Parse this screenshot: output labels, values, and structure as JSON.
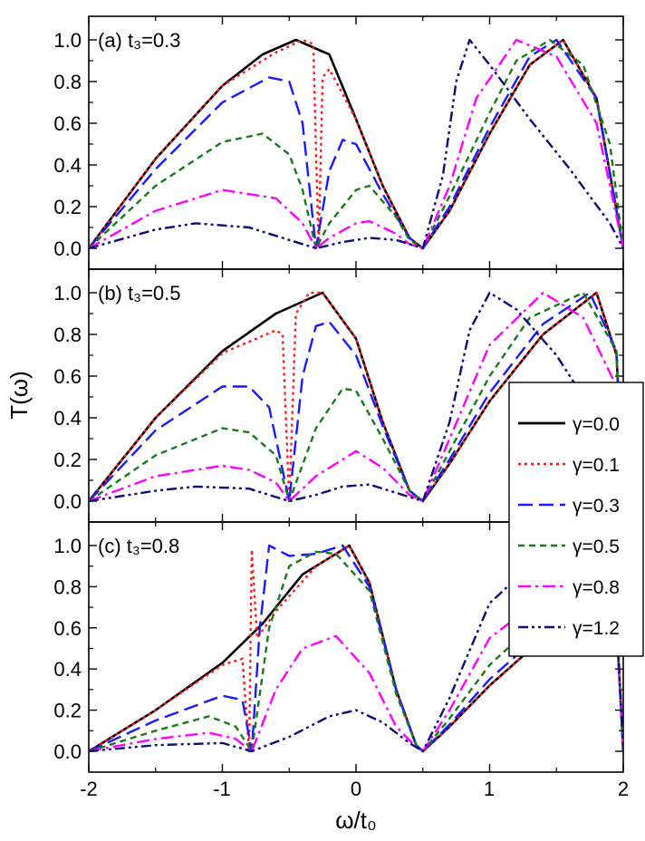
{
  "chart_data": {
    "type": "line",
    "xlabel": "ω/t₀",
    "ylabel": "T(ω)",
    "xlim": [
      -2,
      2
    ],
    "ylim": [
      -0.05,
      1.1
    ],
    "x_ticks": [
      "-2",
      "-1",
      "0",
      "1",
      "2"
    ],
    "y_ticks": [
      "0.0",
      "0.2",
      "0.4",
      "0.6",
      "0.8",
      "1.0"
    ],
    "legend_position": "right, overlapping panels b and c",
    "series_styles": [
      {
        "name": "γ=0.0",
        "color": "#000000",
        "dash": "solid"
      },
      {
        "name": "γ=0.1",
        "color": "#ff1a1a",
        "dash": "dotted"
      },
      {
        "name": "γ=0.3",
        "color": "#1a1aff",
        "dash": "long-dash"
      },
      {
        "name": "γ=0.5",
        "color": "#1a7a1a",
        "dash": "short-dash"
      },
      {
        "name": "γ=0.8",
        "color": "#ff00ff",
        "dash": "dash-dot"
      },
      {
        "name": "γ=1.2",
        "color": "#0d0d7a",
        "dash": "dash-dot-dot"
      }
    ],
    "panels": [
      {
        "label": "(a) t₃=0.3",
        "series": [
          {
            "name": "γ=0.0",
            "x": [
              -2,
              -1.5,
              -1,
              -0.7,
              -0.45,
              -0.2,
              0,
              0.2,
              0.4,
              0.5,
              0.7,
              1.0,
              1.3,
              1.55,
              1.8,
              2
            ],
            "y": [
              0,
              0.43,
              0.78,
              0.93,
              1.0,
              0.93,
              0.62,
              0.3,
              0.05,
              0,
              0.18,
              0.55,
              0.88,
              1.0,
              0.72,
              0
            ]
          },
          {
            "name": "γ=0.1",
            "x": [
              -2,
              -1.5,
              -1,
              -0.6,
              -0.4,
              -0.32,
              -0.28,
              -0.25,
              -0.2,
              0,
              0.2,
              0.4,
              0.5,
              0.7,
              1.0,
              1.3,
              1.55,
              1.8,
              2
            ],
            "y": [
              0,
              0.43,
              0.78,
              0.94,
              1.0,
              0.98,
              0.0,
              0.82,
              0.86,
              0.62,
              0.3,
              0.05,
              0,
              0.18,
              0.55,
              0.88,
              1.0,
              0.72,
              0
            ]
          },
          {
            "name": "γ=0.3",
            "x": [
              -2,
              -1.5,
              -1,
              -0.65,
              -0.5,
              -0.4,
              -0.3,
              -0.2,
              -0.1,
              0,
              0.2,
              0.4,
              0.5,
              0.7,
              1.0,
              1.3,
              1.5,
              1.8,
              2
            ],
            "y": [
              0,
              0.38,
              0.7,
              0.82,
              0.8,
              0.6,
              0.0,
              0.37,
              0.52,
              0.5,
              0.26,
              0.05,
              0,
              0.2,
              0.58,
              0.92,
              1.0,
              0.72,
              0
            ]
          },
          {
            "name": "γ=0.5",
            "x": [
              -2,
              -1.5,
              -1,
              -0.7,
              -0.5,
              -0.4,
              -0.3,
              -0.2,
              0,
              0.1,
              0.3,
              0.4,
              0.5,
              0.7,
              1.0,
              1.2,
              1.45,
              1.7,
              1.9,
              2
            ],
            "y": [
              0,
              0.3,
              0.51,
              0.55,
              0.45,
              0.28,
              0.0,
              0.12,
              0.28,
              0.3,
              0.15,
              0.04,
              0,
              0.25,
              0.65,
              0.9,
              1.0,
              0.88,
              0.5,
              0
            ]
          },
          {
            "name": "γ=0.8",
            "x": [
              -2,
              -1.5,
              -1,
              -0.6,
              -0.4,
              -0.3,
              -0.2,
              0,
              0.1,
              0.3,
              0.4,
              0.5,
              0.7,
              0.9,
              1.2,
              1.5,
              1.8,
              2
            ],
            "y": [
              0,
              0.18,
              0.28,
              0.24,
              0.12,
              0.0,
              0.05,
              0.12,
              0.13,
              0.07,
              0.02,
              0,
              0.3,
              0.72,
              1.0,
              0.92,
              0.6,
              0
            ]
          },
          {
            "name": "γ=1.2",
            "x": [
              -2,
              -1.5,
              -1.2,
              -0.8,
              -0.5,
              -0.3,
              -0.1,
              0.1,
              0.3,
              0.5,
              0.65,
              0.75,
              0.85,
              1.0,
              1.3,
              1.6,
              1.9,
              2
            ],
            "y": [
              0,
              0.09,
              0.12,
              0.1,
              0.04,
              0.0,
              0.03,
              0.05,
              0.04,
              0,
              0.35,
              0.8,
              1.0,
              0.88,
              0.62,
              0.38,
              0.12,
              0
            ]
          }
        ]
      },
      {
        "label": "(b) t₃=0.5",
        "series": [
          {
            "name": "γ=0.0",
            "x": [
              -2,
              -1.5,
              -1,
              -0.6,
              -0.25,
              0,
              0.2,
              0.4,
              0.5,
              0.7,
              1.0,
              1.4,
              1.8,
              1.95,
              2
            ],
            "y": [
              0,
              0.4,
              0.72,
              0.9,
              1.0,
              0.78,
              0.38,
              0.05,
              0,
              0.18,
              0.48,
              0.8,
              1.0,
              0.7,
              0
            ]
          },
          {
            "name": "γ=0.1",
            "x": [
              -2,
              -1.5,
              -1,
              -0.6,
              -0.55,
              -0.5,
              -0.45,
              -0.35,
              -0.25,
              0,
              0.2,
              0.4,
              0.5,
              0.7,
              1.0,
              1.4,
              1.8,
              1.95,
              2
            ],
            "y": [
              0,
              0.4,
              0.71,
              0.82,
              0.8,
              0.0,
              0.9,
              1.0,
              1.0,
              0.78,
              0.38,
              0.05,
              0,
              0.18,
              0.48,
              0.8,
              1.0,
              0.7,
              0
            ]
          },
          {
            "name": "γ=0.3",
            "x": [
              -2,
              -1.5,
              -1,
              -0.8,
              -0.65,
              -0.5,
              -0.4,
              -0.3,
              -0.2,
              0,
              0.2,
              0.4,
              0.5,
              0.7,
              1.0,
              1.4,
              1.75,
              1.95,
              2
            ],
            "y": [
              0,
              0.34,
              0.55,
              0.55,
              0.45,
              0.0,
              0.6,
              0.84,
              0.86,
              0.7,
              0.36,
              0.05,
              0,
              0.2,
              0.52,
              0.85,
              1.0,
              0.72,
              0
            ]
          },
          {
            "name": "γ=0.5",
            "x": [
              -2,
              -1.5,
              -1,
              -0.8,
              -0.6,
              -0.5,
              -0.3,
              -0.1,
              0,
              0.2,
              0.4,
              0.5,
              0.7,
              1.0,
              1.3,
              1.7,
              1.95,
              2
            ],
            "y": [
              0,
              0.22,
              0.35,
              0.33,
              0.22,
              0.0,
              0.35,
              0.54,
              0.53,
              0.3,
              0.05,
              0,
              0.24,
              0.6,
              0.88,
              1.0,
              0.72,
              0
            ]
          },
          {
            "name": "γ=0.8",
            "x": [
              -2,
              -1.5,
              -1,
              -0.8,
              -0.6,
              -0.5,
              -0.3,
              0,
              0.2,
              0.4,
              0.5,
              0.7,
              1.0,
              1.4,
              1.7,
              1.95,
              2
            ],
            "y": [
              0,
              0.12,
              0.17,
              0.15,
              0.09,
              0.0,
              0.12,
              0.24,
              0.16,
              0.03,
              0,
              0.3,
              0.75,
              1.0,
              0.88,
              0.55,
              0
            ]
          },
          {
            "name": "γ=1.2",
            "x": [
              -2,
              -1.5,
              -1.2,
              -0.8,
              -0.5,
              -0.3,
              -0.1,
              0.1,
              0.3,
              0.5,
              0.7,
              0.85,
              1.0,
              1.2,
              1.5,
              1.7,
              2
            ],
            "y": [
              0,
              0.05,
              0.07,
              0.06,
              0.0,
              0.03,
              0.07,
              0.08,
              0.04,
              0,
              0.38,
              0.82,
              1.0,
              0.92,
              0.7,
              0.5,
              0
            ]
          }
        ]
      },
      {
        "label": "(c) t₃=0.8",
        "series": [
          {
            "name": "γ=0.0",
            "x": [
              -2,
              -1.5,
              -1,
              -0.7,
              -0.4,
              -0.05,
              0.1,
              0.3,
              0.45,
              0.5,
              0.7,
              1.0,
              1.4,
              1.8,
              1.95,
              2
            ],
            "y": [
              0,
              0.2,
              0.43,
              0.62,
              0.86,
              1.0,
              0.82,
              0.3,
              0.03,
              0,
              0.12,
              0.32,
              0.55,
              0.71,
              0.62,
              0
            ]
          },
          {
            "name": "γ=0.1",
            "x": [
              -2,
              -1.5,
              -1,
              -0.85,
              -0.8,
              -0.78,
              -0.74,
              -0.6,
              -0.3,
              -0.05,
              0.1,
              0.3,
              0.45,
              0.5,
              0.7,
              1.0,
              1.4,
              1.8,
              1.95,
              2
            ],
            "y": [
              0,
              0.2,
              0.42,
              0.45,
              0.0,
              0.98,
              0.55,
              0.68,
              0.9,
              1.0,
              0.82,
              0.3,
              0.03,
              0,
              0.12,
              0.32,
              0.55,
              0.71,
              0.62,
              0
            ]
          },
          {
            "name": "γ=0.3",
            "x": [
              -2,
              -1.5,
              -1,
              -0.85,
              -0.78,
              -0.72,
              -0.65,
              -0.5,
              -0.3,
              -0.1,
              0.1,
              0.3,
              0.45,
              0.5,
              0.7,
              1.0,
              1.4,
              1.8,
              1.95,
              2
            ],
            "y": [
              0,
              0.15,
              0.27,
              0.25,
              0.0,
              0.6,
              1.0,
              0.95,
              0.96,
              1.0,
              0.8,
              0.3,
              0.03,
              0,
              0.13,
              0.35,
              0.58,
              0.72,
              0.62,
              0
            ]
          },
          {
            "name": "γ=0.5",
            "x": [
              -2,
              -1.5,
              -1.1,
              -0.9,
              -0.78,
              -0.65,
              -0.5,
              -0.3,
              -0.15,
              0.1,
              0.3,
              0.45,
              0.5,
              0.7,
              1.0,
              1.4,
              1.8,
              1.95,
              2
            ],
            "y": [
              0,
              0.1,
              0.17,
              0.12,
              0.0,
              0.6,
              0.9,
              0.97,
              0.96,
              0.78,
              0.28,
              0.03,
              0,
              0.16,
              0.42,
              0.66,
              0.8,
              0.65,
              0
            ]
          },
          {
            "name": "γ=0.8",
            "x": [
              -2,
              -1.5,
              -1.1,
              -0.9,
              -0.78,
              -0.6,
              -0.4,
              -0.15,
              0.1,
              0.3,
              0.45,
              0.5,
              0.7,
              1.0,
              1.4,
              1.8,
              1.95,
              2
            ],
            "y": [
              0,
              0.06,
              0.09,
              0.06,
              0.0,
              0.3,
              0.5,
              0.56,
              0.38,
              0.12,
              0.02,
              0,
              0.2,
              0.55,
              0.75,
              0.82,
              0.65,
              0
            ]
          },
          {
            "name": "γ=1.2",
            "x": [
              -2,
              -1.5,
              -1,
              -0.78,
              -0.5,
              -0.2,
              0,
              0.2,
              0.4,
              0.5,
              0.7,
              1.0,
              1.3,
              1.5,
              1.8,
              1.95,
              2
            ],
            "y": [
              0,
              0.03,
              0.04,
              0.0,
              0.07,
              0.17,
              0.2,
              0.14,
              0.04,
              0,
              0.26,
              0.72,
              0.9,
              0.92,
              0.86,
              0.66,
              0
            ]
          }
        ]
      }
    ]
  }
}
